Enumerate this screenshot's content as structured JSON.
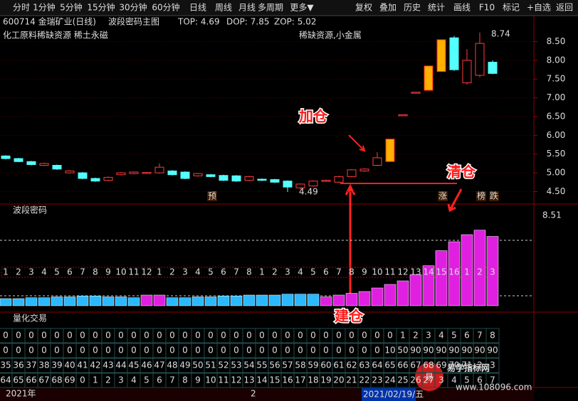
{
  "toolbar": {
    "left": [
      "分时",
      "1分钟",
      "5分钟",
      "15分钟",
      "30分钟",
      "60分钟",
      "日线",
      "周线",
      "月线",
      "多周期",
      "更多▼"
    ],
    "right": [
      "复权",
      "叠加",
      "历史",
      "统计",
      "画线",
      "F10",
      "标记",
      "+自选",
      "返回"
    ]
  },
  "header": {
    "symbol": "600714 金瑞矿业(日线)",
    "indicator": "波段密码主图",
    "top": "TOP: 4.69",
    "dop": "DOP: 7.85",
    "zop": "ZOP: 5.02",
    "sector": "化工原料稀缺资源 稀土永磁",
    "concept": "稀缺资源,小金属"
  },
  "chart_data": {
    "type": "candlestick",
    "ylim": [
      4.3,
      8.85
    ],
    "yticks": [
      {
        "value": 8.5,
        "label": "8.50"
      },
      {
        "value": 8,
        "label": "8.00"
      },
      {
        "value": 7.5,
        "label": "7.50"
      },
      {
        "value": 7,
        "label": "7.00"
      },
      {
        "value": 6.5,
        "label": "6.50"
      },
      {
        "value": 6,
        "label": "6.00"
      },
      {
        "value": 5.5,
        "label": "5.50"
      },
      {
        "value": 5,
        "label": "5.00"
      },
      {
        "value": 4.5,
        "label": "4.50"
      }
    ],
    "grid": true,
    "up_color": "#ff3c3c",
    "down_color": "#54ffff",
    "candles": [
      {
        "open": 5.45,
        "high": 5.47,
        "low": 5.36,
        "close": 5.38
      },
      {
        "open": 5.38,
        "high": 5.4,
        "low": 5.28,
        "close": 5.3
      },
      {
        "open": 5.3,
        "high": 5.32,
        "low": 5.2,
        "close": 5.22
      },
      {
        "open": 5.2,
        "high": 5.27,
        "low": 5.18,
        "close": 5.25
      },
      {
        "open": 5.2,
        "high": 5.22,
        "low": 5.08,
        "close": 5.1
      },
      {
        "open": 5.0,
        "high": 5.07,
        "low": 4.98,
        "close": 5.05
      },
      {
        "open": 5.0,
        "high": 5.02,
        "low": 4.83,
        "close": 4.85
      },
      {
        "open": 4.85,
        "high": 4.87,
        "low": 4.76,
        "close": 4.78
      },
      {
        "open": 4.8,
        "high": 4.9,
        "low": 4.78,
        "close": 4.88
      },
      {
        "open": 4.95,
        "high": 5.02,
        "low": 4.93,
        "close": 5.0
      },
      {
        "open": 4.98,
        "high": 5.04,
        "low": 4.96,
        "close": 5.02
      },
      {
        "open": 5.0,
        "high": 5.02,
        "low": 4.98,
        "close": 5.01
      },
      {
        "open": 5.0,
        "high": 5.25,
        "low": 4.98,
        "close": 5.15
      },
      {
        "open": 5.05,
        "high": 5.07,
        "low": 4.93,
        "close": 4.95
      },
      {
        "open": 5.02,
        "high": 5.04,
        "low": 4.83,
        "close": 4.85
      },
      {
        "open": 4.92,
        "high": 5.0,
        "low": 4.9,
        "close": 4.98
      },
      {
        "open": 4.95,
        "high": 4.97,
        "low": 4.88,
        "close": 4.9
      },
      {
        "open": 4.93,
        "high": 4.95,
        "low": 4.78,
        "close": 4.8
      },
      {
        "open": 4.92,
        "high": 4.94,
        "low": 4.76,
        "close": 4.78
      },
      {
        "open": 4.8,
        "high": 4.92,
        "low": 4.78,
        "close": 4.9
      },
      {
        "open": 4.83,
        "high": 4.85,
        "low": 4.78,
        "close": 4.8
      },
      {
        "open": 4.82,
        "high": 4.84,
        "low": 4.73,
        "close": 4.75
      },
      {
        "open": 4.78,
        "high": 4.8,
        "low": 4.49,
        "close": 4.62
      },
      {
        "open": 4.6,
        "high": 4.72,
        "low": 4.55,
        "close": 4.7
      },
      {
        "open": 4.65,
        "high": 4.8,
        "low": 4.63,
        "close": 4.78
      },
      {
        "open": 4.78,
        "high": 4.82,
        "low": 4.76,
        "close": 4.8
      },
      {
        "open": 4.75,
        "high": 4.92,
        "low": 4.73,
        "close": 4.9
      },
      {
        "open": 4.9,
        "high": 5.1,
        "low": 4.88,
        "close": 5.08
      },
      {
        "open": 5.05,
        "high": 5.12,
        "low": 5.03,
        "close": 5.1
      },
      {
        "open": 5.2,
        "high": 5.55,
        "low": 5.18,
        "close": 5.4
      },
      {
        "open": 5.3,
        "high": 5.9,
        "low": 5.3,
        "close": 5.9,
        "color": "#ffb000"
      },
      {
        "open": 6.55,
        "high": 6.55,
        "low": 6.55,
        "close": 6.55
      },
      {
        "open": 7.15,
        "high": 7.15,
        "low": 7.15,
        "close": 7.15
      },
      {
        "open": 7.2,
        "high": 7.85,
        "low": 7.2,
        "close": 7.85,
        "color": "#ffb000"
      },
      {
        "open": 7.7,
        "high": 8.55,
        "low": 7.7,
        "close": 8.55,
        "color": "#ffb000"
      },
      {
        "open": 8.6,
        "high": 8.65,
        "low": 7.72,
        "close": 7.75
      },
      {
        "open": 7.4,
        "high": 8.3,
        "low": 7.35,
        "close": 8.0
      },
      {
        "open": 7.6,
        "high": 8.74,
        "low": 7.55,
        "close": 8.45
      },
      {
        "open": 7.95,
        "high": 8.0,
        "low": 7.63,
        "close": 7.65
      }
    ],
    "high_label": "8.74",
    "low_label": "4.49",
    "annotations": [
      "加仓",
      "清仓",
      "建仓"
    ],
    "signals": [
      "预",
      "涨",
      "榜",
      "跌"
    ]
  },
  "band_panel": {
    "title": "波段密码",
    "value": "8.51",
    "ylim": [
      0,
      100
    ],
    "series": [
      {
        "name": "cyan",
        "color": "#2ab8ff",
        "values": [
          8,
          8,
          9,
          9,
          10,
          10,
          11,
          11,
          10,
          10,
          9,
          null,
          null,
          9,
          9,
          10,
          10,
          11,
          11,
          12,
          12,
          12,
          13,
          13,
          13,
          null,
          null,
          null,
          null,
          null,
          null,
          null,
          null,
          null,
          null,
          null,
          null,
          null,
          null
        ]
      },
      {
        "name": "magenta",
        "color": "#e020e0",
        "values": [
          null,
          null,
          null,
          null,
          null,
          null,
          null,
          null,
          null,
          null,
          null,
          12,
          12,
          null,
          null,
          null,
          null,
          null,
          null,
          null,
          null,
          null,
          null,
          null,
          null,
          10,
          12,
          14,
          16,
          20,
          24,
          28,
          35,
          45,
          62,
          72,
          80,
          85,
          78
        ]
      }
    ],
    "counters": [
      1,
      2,
      3,
      4,
      5,
      6,
      7,
      8,
      9,
      10,
      11,
      12,
      1,
      2,
      3,
      4,
      5,
      6,
      7,
      8,
      1,
      2,
      3,
      4,
      5,
      6,
      7,
      8,
      9,
      10,
      11,
      12,
      13,
      14,
      15,
      16,
      1,
      2,
      3
    ]
  },
  "quant_panel": {
    "title": "量化交易",
    "rows": [
      [
        0,
        0,
        0,
        0,
        0,
        0,
        0,
        0,
        0,
        0,
        0,
        0,
        0,
        0,
        0,
        0,
        0,
        0,
        0,
        0,
        0,
        0,
        0,
        0,
        0,
        0,
        0,
        0,
        0,
        0,
        0,
        1,
        2,
        3,
        4,
        5,
        6,
        7,
        8
      ],
      [
        0,
        0,
        0,
        0,
        0,
        0,
        0,
        0,
        0,
        0,
        0,
        0,
        0,
        0,
        0,
        0,
        0,
        0,
        0,
        0,
        0,
        0,
        0,
        0,
        0,
        0,
        0,
        0,
        0,
        0,
        10,
        50,
        90,
        90,
        90,
        90,
        90,
        90,
        90
      ],
      [
        35,
        36,
        37,
        38,
        39,
        40,
        41,
        42,
        43,
        44,
        45,
        46,
        47,
        48,
        49,
        50,
        51,
        52,
        53,
        54,
        55,
        56,
        57,
        58,
        59,
        60,
        61,
        62,
        63,
        64,
        65,
        66,
        67,
        68,
        69,
        70,
        71,
        2,
        3
      ],
      [
        64,
        65,
        66,
        67,
        68,
        69,
        0,
        1,
        2,
        3,
        4,
        5,
        6,
        7,
        8,
        9,
        10,
        11,
        12,
        13,
        14,
        15,
        16,
        17,
        18,
        19,
        20,
        21,
        22,
        23,
        24,
        25,
        26,
        27,
        3,
        4,
        5,
        6,
        7
      ]
    ]
  },
  "footer": {
    "year": "2021年",
    "month": "2",
    "date": "2021/02/19/五"
  },
  "watermark": {
    "logo": "易",
    "name": "易学指标网",
    "url": "www.108096.com"
  }
}
